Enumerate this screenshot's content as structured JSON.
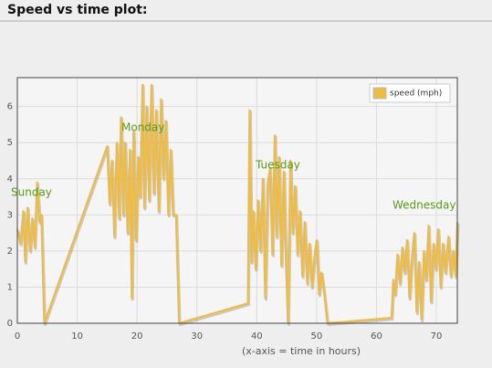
{
  "chart_data": {
    "type": "line",
    "title": "Speed vs time plot:",
    "xlabel": "(x-axis = time in hours)",
    "annotations": [
      "Sunday",
      "Monday",
      "Tuesday",
      "Wednesday"
    ],
    "xlim": [
      0,
      73.5
    ],
    "ylim": [
      0,
      6.8
    ],
    "xticks": [
      0,
      10,
      20,
      30,
      40,
      50,
      60,
      70
    ],
    "yticks": [
      0,
      1,
      2,
      3,
      4,
      5,
      6
    ],
    "grid": true,
    "legend": "upper right",
    "x": [
      0,
      0.5,
      1,
      1.3,
      1.7,
      2.1,
      2.5,
      2.9,
      3.3,
      3.7,
      4.0,
      4.5,
      15,
      15.4,
      15.8,
      16.2,
      16.6,
      17,
      17.3,
      17.7,
      18,
      18.4,
      18.8,
      19.1,
      19.4,
      19.8,
      20.2,
      20.5,
      20.9,
      21.2,
      21.6,
      22,
      22.4,
      22.8,
      23.2,
      23.6,
      24,
      24.4,
      24.8,
      25.2,
      25.6,
      26,
      26.5,
      27,
      38.5,
      38.8,
      39.1,
      39.4,
      39.8,
      40.2,
      40.6,
      41,
      41.4,
      41.8,
      42.2,
      42.6,
      43,
      43.3,
      43.7,
      44.1,
      44.5,
      44.8,
      45.2,
      45.6,
      46,
      46.4,
      46.8,
      47.2,
      47.6,
      48,
      48.4,
      48.8,
      49.2,
      49.6,
      50,
      50.4,
      50.8,
      51.2,
      51.8,
      62.5,
      62.8,
      63.1,
      63.5,
      63.9,
      64.3,
      64.7,
      65.1,
      65.5,
      65.9,
      66.3,
      66.7,
      67.1,
      67.5,
      67.9,
      68.3,
      68.7,
      69.1,
      69.5,
      69.9,
      70.3,
      70.7,
      71.1,
      71.5,
      72,
      72.4,
      72.8,
      73.2,
      73.5
    ],
    "series": [
      {
        "name": "speed (mph)",
        "color": "#eebc44",
        "values": [
          2.6,
          2.2,
          3.1,
          1.7,
          3.2,
          2.0,
          2.9,
          2.1,
          3.9,
          2.8,
          3.0,
          0,
          4.9,
          3.3,
          4.5,
          2.4,
          5.0,
          2.9,
          5.7,
          3.0,
          5.0,
          2.5,
          4.8,
          0.7,
          5.3,
          2.3,
          4.6,
          3.5,
          6.6,
          3.2,
          6.0,
          3.4,
          6.6,
          3.6,
          5.9,
          3.1,
          6.2,
          4.0,
          5.6,
          3.0,
          4.8,
          3.0,
          3.0,
          0,
          0.55,
          5.9,
          1.7,
          3.1,
          1.5,
          3.4,
          2.0,
          4.0,
          0.7,
          3.8,
          4.3,
          1.9,
          5.2,
          2.4,
          4.6,
          1.6,
          4.2,
          2.1,
          0,
          4.5,
          2.5,
          3.8,
          1.9,
          3.1,
          1.3,
          2.8,
          1.1,
          2.2,
          1.0,
          1.8,
          2.3,
          0.8,
          1.4,
          0.9,
          0,
          0.15,
          1.2,
          0.8,
          1.9,
          1.1,
          2.1,
          1.4,
          2.3,
          0.7,
          1.8,
          2.5,
          0.3,
          1.7,
          0.1,
          2.0,
          1.2,
          2.7,
          0.6,
          2.2,
          1.5,
          2.6,
          1.0,
          2.2,
          1.4,
          2.4,
          1.3,
          2.0,
          1.3,
          2.8
        ]
      }
    ]
  }
}
